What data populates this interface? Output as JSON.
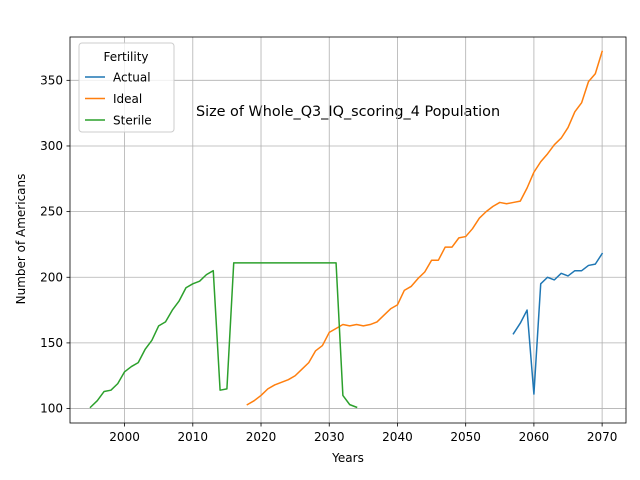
{
  "chart_data": {
    "type": "line",
    "title": "Size of Whole_Q3_IQ_scoring_4 Population",
    "xlabel": "Years",
    "ylabel": "Number of Americans",
    "xlim": [
      1992,
      2073.5
    ],
    "ylim": [
      89,
      383
    ],
    "xticks": [
      2000,
      2010,
      2020,
      2030,
      2040,
      2050,
      2060,
      2070
    ],
    "yticks": [
      100,
      150,
      200,
      250,
      300,
      350
    ],
    "grid": true,
    "legend": {
      "title": "Fertility",
      "placement": "top-left"
    },
    "series": [
      {
        "name": "Actual",
        "color": "#1f77b4",
        "x": [
          2057,
          2058,
          2059,
          2060,
          2061,
          2062,
          2063,
          2064,
          2065,
          2066,
          2067,
          2068,
          2069,
          2070
        ],
        "y": [
          157,
          165,
          175,
          111,
          195,
          200,
          198,
          203,
          201,
          205,
          205,
          209,
          210,
          218
        ]
      },
      {
        "name": "Ideal",
        "color": "#ff7f0e",
        "x": [
          2018,
          2019,
          2020,
          2021,
          2022,
          2023,
          2024,
          2025,
          2026,
          2027,
          2028,
          2029,
          2030,
          2031,
          2032,
          2033,
          2034,
          2035,
          2036,
          2037,
          2038,
          2039,
          2040,
          2041,
          2042,
          2043,
          2044,
          2045,
          2046,
          2047,
          2048,
          2049,
          2050,
          2051,
          2052,
          2053,
          2054,
          2055,
          2056,
          2057,
          2058,
          2059,
          2060,
          2061,
          2062,
          2063,
          2064,
          2065,
          2066,
          2067,
          2068,
          2069,
          2070
        ],
        "y": [
          103,
          106,
          110,
          115,
          118,
          120,
          122,
          125,
          130,
          135,
          144,
          148,
          158,
          161,
          164,
          163,
          164,
          163,
          164,
          166,
          171,
          176,
          179,
          190,
          193,
          199,
          204,
          213,
          213,
          223,
          223,
          230,
          231,
          237,
          245,
          250,
          254,
          257,
          256,
          257,
          258,
          268,
          280,
          288,
          294,
          301,
          306,
          314,
          326,
          333,
          349,
          355,
          372
        ]
      },
      {
        "name": "Sterile",
        "color": "#2ca02c",
        "x": [
          1995,
          1996,
          1997,
          1998,
          1999,
          2000,
          2001,
          2002,
          2003,
          2004,
          2005,
          2006,
          2007,
          2008,
          2009,
          2010,
          2011,
          2012,
          2013,
          2014,
          2015,
          2016,
          2017,
          2018,
          2019,
          2020,
          2021,
          2022,
          2023,
          2024,
          2025,
          2026,
          2027,
          2028,
          2029,
          2030,
          2031,
          2032,
          2033,
          2034
        ],
        "y": [
          101,
          106,
          113,
          114,
          119,
          128,
          132,
          135,
          145,
          152,
          163,
          166,
          175,
          182,
          192,
          195,
          197,
          202,
          205,
          114,
          115,
          211,
          211,
          211,
          211,
          211,
          211,
          211,
          211,
          211,
          211,
          211,
          211,
          211,
          211,
          211,
          211,
          110,
          103,
          101
        ]
      }
    ]
  }
}
